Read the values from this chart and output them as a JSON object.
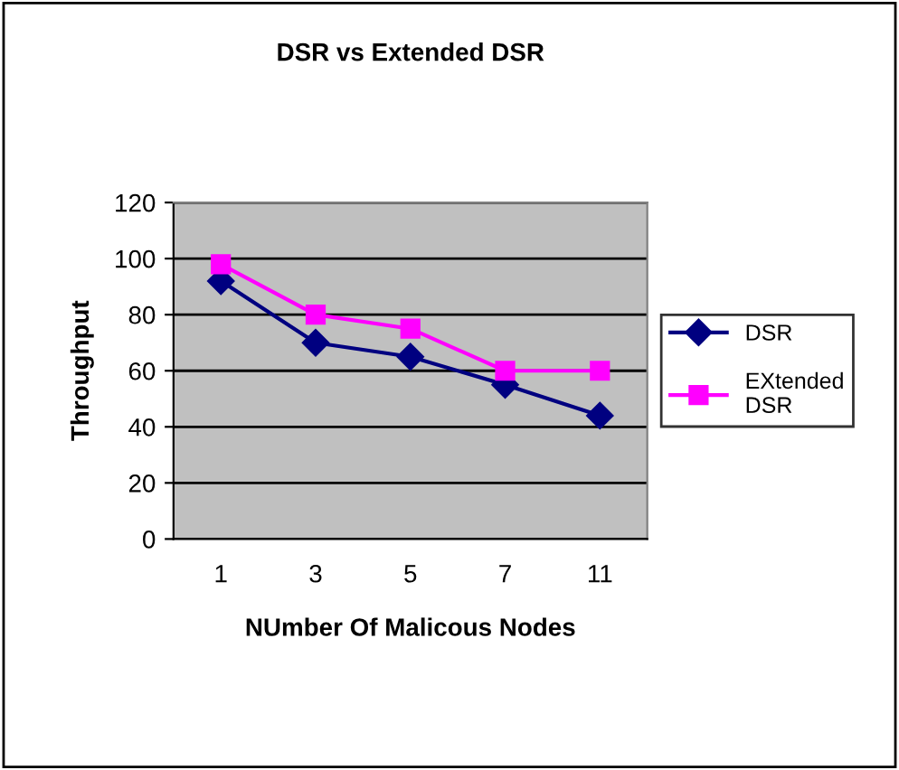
{
  "chart_data": {
    "type": "line",
    "title": "DSR vs Extended DSR",
    "xlabel": "NUmber Of Malicous Nodes",
    "ylabel": "Throughput",
    "categories": [
      "1",
      "3",
      "5",
      "7",
      "11"
    ],
    "series": [
      {
        "name": "DSR",
        "color": "#000080",
        "marker": "diamond",
        "values": [
          92,
          70,
          65,
          55,
          44
        ]
      },
      {
        "name": "EXtended\nDSR",
        "color": "#ff00ff",
        "marker": "square",
        "values": [
          98,
          80,
          75,
          60,
          60
        ]
      }
    ],
    "ylim": [
      0,
      120
    ],
    "yticks": [
      0,
      20,
      40,
      60,
      80,
      100,
      120
    ],
    "grid": "y",
    "legend": "right",
    "line_style": "solid"
  }
}
